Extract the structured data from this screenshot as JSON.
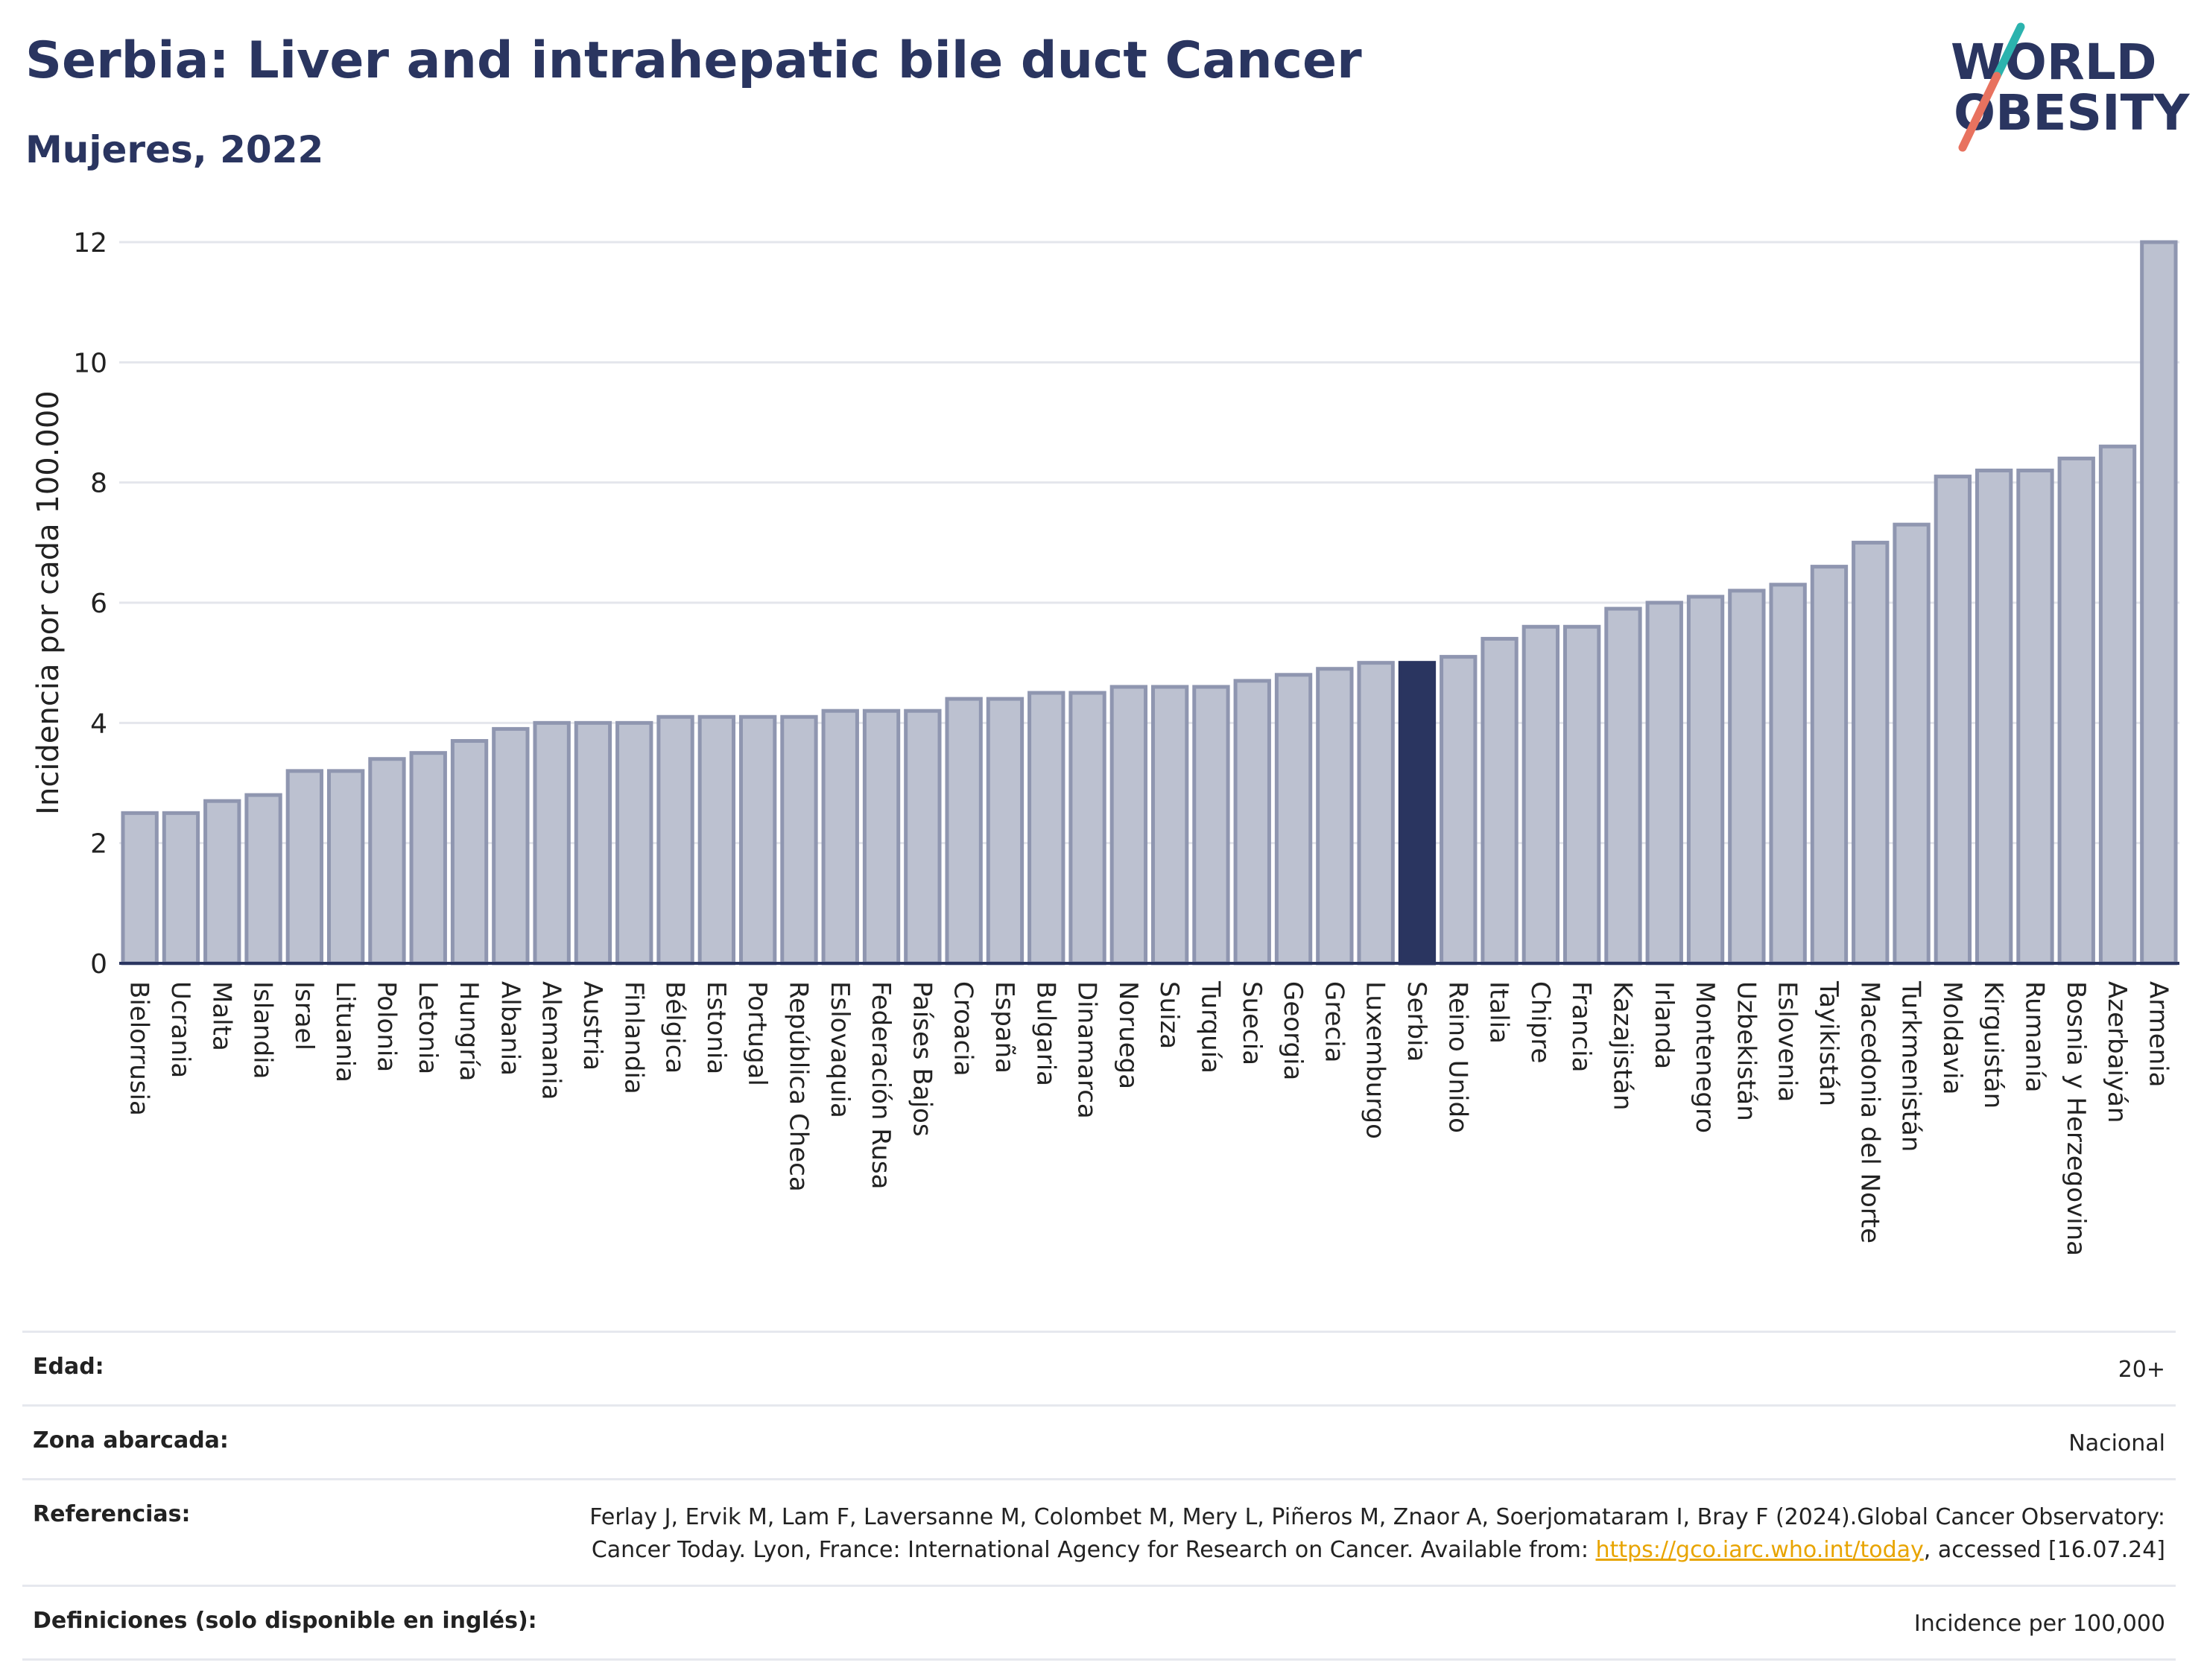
{
  "header": {
    "title": "Serbia: Liver and intrahepatic bile duct Cancer",
    "subtitle": "Mujeres, 2022"
  },
  "logo": {
    "line1": "WORLD",
    "line2": "OBESITY",
    "colors": {
      "text": "#2a3560",
      "slash_teal": "#2bb3ae",
      "slash_coral": "#e8725f"
    }
  },
  "colors": {
    "bar_default": "#bcc1d0",
    "bar_default_border": "#8f96b0",
    "bar_highlight": "#2a3560",
    "grid": "#e4e6ec",
    "axis": "#2a3560"
  },
  "chart_data": {
    "type": "bar",
    "title": "",
    "xlabel": "",
    "ylabel": "Incidencia por cada 100.000",
    "ylim": [
      0,
      12
    ],
    "yticks": [
      0,
      2,
      4,
      6,
      8,
      10,
      12
    ],
    "grid": true,
    "highlight": "Serbia",
    "categories": [
      "Bielorrusia",
      "Ucrania",
      "Malta",
      "Islandia",
      "Israel",
      "Lituania",
      "Polonia",
      "Letonia",
      "Hungría",
      "Albania",
      "Alemania",
      "Austria",
      "Finlandia",
      "Bélgica",
      "Estonia",
      "Portugal",
      "República Checa",
      "Eslovaquia",
      "Federación Rusa",
      "Países Bajos",
      "Croacia",
      "España",
      "Bulgaria",
      "Dinamarca",
      "Noruega",
      "Suiza",
      "Turquía",
      "Suecia",
      "Georgia",
      "Grecia",
      "Luxemburgo",
      "Serbia",
      "Reino Unido",
      "Italia",
      "Chipre",
      "Francia",
      "Kazajistán",
      "Irlanda",
      "Montenegro",
      "Uzbekistán",
      "Eslovenia",
      "Tayikistán",
      "Macedonia del Norte",
      "Turkmenistán",
      "Moldavia",
      "Kirguistán",
      "Rumanía",
      "Bosnia y Herzegovina",
      "Azerbaiyán",
      "Armenia"
    ],
    "values": [
      2.5,
      2.5,
      2.7,
      2.8,
      3.2,
      3.2,
      3.4,
      3.5,
      3.7,
      3.9,
      4.0,
      4.0,
      4.0,
      4.1,
      4.1,
      4.1,
      4.1,
      4.2,
      4.2,
      4.2,
      4.4,
      4.4,
      4.5,
      4.5,
      4.6,
      4.6,
      4.6,
      4.7,
      4.8,
      4.9,
      5.0,
      5.0,
      5.1,
      5.4,
      5.6,
      5.6,
      5.9,
      6.0,
      6.1,
      6.2,
      6.3,
      6.6,
      7.0,
      7.3,
      8.1,
      8.2,
      8.2,
      8.4,
      8.6,
      12.0
    ]
  },
  "info": {
    "age_label": "Edad:",
    "age_value": "20+",
    "area_label": "Zona abarcada:",
    "area_value": "Nacional",
    "references_label": "Referencias:",
    "references_text_before": "Ferlay J, Ervik M, Lam F, Laversanne M, Colombet M, Mery L, Piñeros M, Znaor A, Soerjomataram I, Bray F (2024).Global Cancer Observatory: Cancer Today. Lyon, France: International Agency for Research on Cancer. Available from: ",
    "references_link": "https://gco.iarc.who.int/today",
    "references_text_after": ", accessed [16.07.24]",
    "definitions_label": "Definiciones (solo disponible en inglés):",
    "definitions_value": "Incidence per 100,000"
  }
}
